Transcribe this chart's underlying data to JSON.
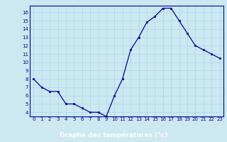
{
  "hours": [
    0,
    1,
    2,
    3,
    4,
    5,
    6,
    7,
    8,
    9,
    10,
    11,
    12,
    13,
    14,
    15,
    16,
    17,
    18,
    19,
    20,
    21,
    22,
    23
  ],
  "temps": [
    8.0,
    7.0,
    6.5,
    6.5,
    5.0,
    5.0,
    4.5,
    4.0,
    4.0,
    3.5,
    6.0,
    8.0,
    11.5,
    13.0,
    14.8,
    15.5,
    16.5,
    16.5,
    15.0,
    13.5,
    12.0,
    11.5,
    11.0,
    10.5
  ],
  "xlabel": "Graphe des températures (°c)",
  "ylim": [
    3.5,
    16.8
  ],
  "xlim": [
    -0.5,
    23.5
  ],
  "yticks": [
    4,
    5,
    6,
    7,
    8,
    9,
    10,
    11,
    12,
    13,
    14,
    15,
    16
  ],
  "xticks": [
    0,
    1,
    2,
    3,
    4,
    5,
    6,
    7,
    8,
    9,
    10,
    11,
    12,
    13,
    14,
    15,
    16,
    17,
    18,
    19,
    20,
    21,
    22,
    23
  ],
  "line_color": "#0000aa",
  "marker_color": "#0000aa",
  "bg_color": "#cce8f0",
  "grid_color": "#aaddee",
  "axis_label_bg": "#0000aa",
  "axis_label_fg": "#ffffff",
  "tick_color": "#0000aa",
  "spine_color": "#0000aa"
}
